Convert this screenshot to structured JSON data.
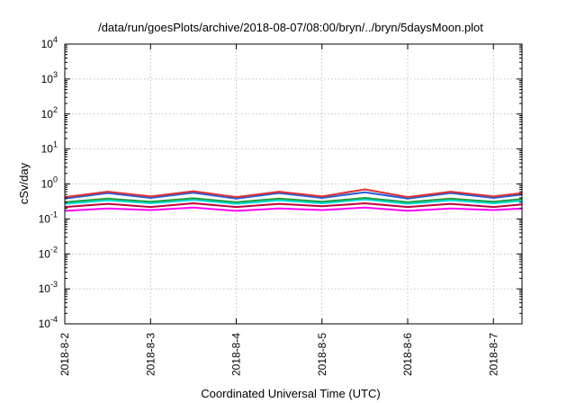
{
  "chart_data": {
    "type": "line",
    "title": "/data/run/goesPlots/archive/2018-08-07/08:00/bryn/../bryn/5daysMoon.plot",
    "xlabel": "Coordinated Universal Time (UTC)",
    "ylabel": "cSv/day",
    "y_scale": "log",
    "ylim": [
      0.0001,
      10000
    ],
    "y_ticks": [
      {
        "base": "10",
        "exp": "-4"
      },
      {
        "base": "10",
        "exp": "-3"
      },
      {
        "base": "10",
        "exp": "-2"
      },
      {
        "base": "10",
        "exp": "-1"
      },
      {
        "base": "10",
        "exp": "0"
      },
      {
        "base": "10",
        "exp": "1"
      },
      {
        "base": "10",
        "exp": "2"
      },
      {
        "base": "10",
        "exp": "3"
      },
      {
        "base": "10",
        "exp": "4"
      }
    ],
    "x_range": [
      "2018-08-02",
      "2018-08-07 08:00"
    ],
    "x_tick_labels": [
      "2018-8-2",
      "2018-8-3",
      "2018-8-4",
      "2018-8-5",
      "2018-8-6",
      "2018-8-7"
    ],
    "grid": true,
    "series": [
      {
        "color": "#ff00ff",
        "x": [
          "2018-08-02",
          "2018-08-02 12:00",
          "2018-08-03",
          "2018-08-03 12:00",
          "2018-08-04",
          "2018-08-04 12:00",
          "2018-08-05",
          "2018-08-05 12:00",
          "2018-08-06",
          "2018-08-06 12:00",
          "2018-08-07",
          "2018-08-07 08:00"
        ],
        "values": [
          0.17,
          0.2,
          0.18,
          0.21,
          0.17,
          0.2,
          0.18,
          0.21,
          0.17,
          0.2,
          0.18,
          0.2
        ]
      },
      {
        "color": "#c0003c",
        "x": [
          "2018-08-02",
          "2018-08-02 12:00",
          "2018-08-03",
          "2018-08-03 12:00",
          "2018-08-04",
          "2018-08-04 12:00",
          "2018-08-05",
          "2018-08-05 12:00",
          "2018-08-06",
          "2018-08-06 12:00",
          "2018-08-07",
          "2018-08-07 08:00"
        ],
        "values": [
          0.22,
          0.27,
          0.22,
          0.28,
          0.22,
          0.27,
          0.23,
          0.28,
          0.22,
          0.27,
          0.22,
          0.26
        ]
      },
      {
        "color": "#00e0e0",
        "x": [
          "2018-08-02",
          "2018-08-02 12:00",
          "2018-08-03",
          "2018-08-03 12:00",
          "2018-08-04",
          "2018-08-04 12:00",
          "2018-08-05",
          "2018-08-05 12:00",
          "2018-08-06",
          "2018-08-06 12:00",
          "2018-08-07",
          "2018-08-07 08:00"
        ],
        "values": [
          0.27,
          0.34,
          0.28,
          0.35,
          0.27,
          0.34,
          0.28,
          0.36,
          0.27,
          0.34,
          0.28,
          0.33
        ]
      },
      {
        "color": "#1f9f3f",
        "x": [
          "2018-08-02",
          "2018-08-02 12:00",
          "2018-08-03",
          "2018-08-03 12:00",
          "2018-08-04",
          "2018-08-04 12:00",
          "2018-08-05",
          "2018-08-05 12:00",
          "2018-08-06",
          "2018-08-06 12:00",
          "2018-08-07",
          "2018-08-07 08:00"
        ],
        "values": [
          0.3,
          0.38,
          0.31,
          0.39,
          0.3,
          0.38,
          0.31,
          0.4,
          0.3,
          0.38,
          0.31,
          0.37
        ]
      },
      {
        "color": "#2060e0",
        "x": [
          "2018-08-02",
          "2018-08-02 12:00",
          "2018-08-03",
          "2018-08-03 12:00",
          "2018-08-04",
          "2018-08-04 12:00",
          "2018-08-05",
          "2018-08-05 12:00",
          "2018-08-06",
          "2018-08-06 12:00",
          "2018-08-07",
          "2018-08-07 08:00"
        ],
        "values": [
          0.38,
          0.55,
          0.4,
          0.56,
          0.38,
          0.55,
          0.4,
          0.58,
          0.38,
          0.55,
          0.4,
          0.5
        ]
      },
      {
        "color": "#e03030",
        "x": [
          "2018-08-02",
          "2018-08-02 12:00",
          "2018-08-03",
          "2018-08-03 12:00",
          "2018-08-04",
          "2018-08-04 12:00",
          "2018-08-05",
          "2018-08-05 12:00",
          "2018-08-06",
          "2018-08-06 12:00",
          "2018-08-07",
          "2018-08-07 08:00"
        ],
        "values": [
          0.42,
          0.6,
          0.44,
          0.62,
          0.42,
          0.6,
          0.44,
          0.7,
          0.42,
          0.6,
          0.44,
          0.55
        ]
      }
    ]
  }
}
